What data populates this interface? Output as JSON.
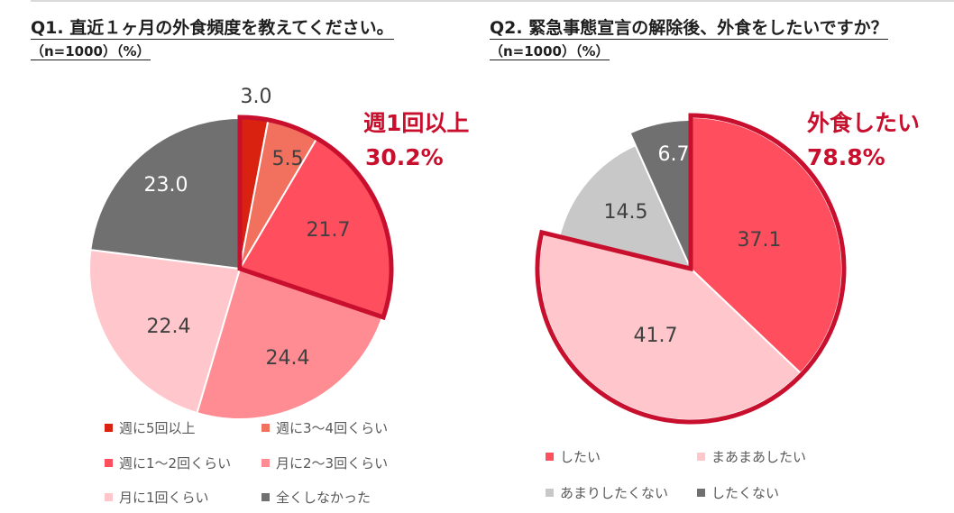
{
  "q1": {
    "title": "Q1. 直近１ヶ月の外食頻度を教えてください。",
    "subtitle": "（n=1000）（%）",
    "callout": {
      "line1": "週1回以上",
      "line2": "30.2%"
    }
  },
  "q2": {
    "title": "Q2. 緊急事態宣言の解除後、外食をしたいですか？",
    "subtitle": "（n=1000）（%）",
    "callout": {
      "line1": "外食したい",
      "line2": "78.8%"
    }
  },
  "chart_data": [
    {
      "type": "pie",
      "title": "Q1. 直近１ヶ月の外食頻度を教えてください。",
      "categories": [
        "週に5回以上",
        "週に3〜4回くらい",
        "週に1〜2回くらい",
        "月に2〜3回くらい",
        "月に1回くらい",
        "全くしなかった"
      ],
      "values": [
        3.0,
        5.5,
        21.7,
        24.4,
        22.4,
        23.0
      ],
      "labels": [
        "3.0",
        "5.5",
        "21.7",
        "24.4",
        "22.4",
        "23.0"
      ],
      "colors": [
        "#d9220f",
        "#f2705e",
        "#ff4f5e",
        "#ff8c93",
        "#ffc7cb",
        "#707070"
      ],
      "highlight": {
        "slices": [
          0,
          1,
          2
        ],
        "color": "#c8102e"
      },
      "legend": "bottom"
    },
    {
      "type": "pie",
      "title": "Q2. 緊急事態宣言の解除後、外食をしたいですか？",
      "categories": [
        "したい",
        "まあまあしたい",
        "あまりしたくない",
        "したくない"
      ],
      "values": [
        37.1,
        41.7,
        14.5,
        6.7
      ],
      "labels": [
        "37.1",
        "41.7",
        "14.5",
        "6.7"
      ],
      "colors": [
        "#ff4f5e",
        "#ffc7cb",
        "#c8c8c8",
        "#707070"
      ],
      "highlight": {
        "slices": [
          0,
          1
        ],
        "color": "#c8102e"
      },
      "legend": "bottom"
    }
  ]
}
